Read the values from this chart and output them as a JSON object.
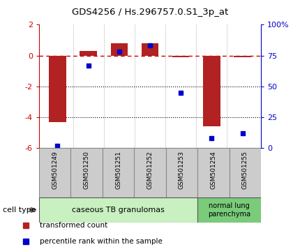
{
  "title": "GDS4256 / Hs.296757.0.S1_3p_at",
  "samples": [
    "GSM501249",
    "GSM501250",
    "GSM501251",
    "GSM501252",
    "GSM501253",
    "GSM501254",
    "GSM501255"
  ],
  "transformed_count": [
    -4.3,
    0.3,
    0.8,
    0.8,
    -0.1,
    -4.6,
    -0.1
  ],
  "percentile_rank": [
    2,
    67,
    78,
    83,
    45,
    8,
    12
  ],
  "left_ylim": [
    -6,
    2
  ],
  "left_yticks": [
    -6,
    -4,
    -2,
    0,
    2
  ],
  "right_ylim": [
    0,
    100
  ],
  "right_yticks": [
    0,
    25,
    50,
    75,
    100
  ],
  "right_yticklabels": [
    "0",
    "25",
    "50",
    "75",
    "100%"
  ],
  "bar_color": "#b22222",
  "dot_color": "#0000cc",
  "zero_line_color": "#cc0000",
  "grid_color": "#000000",
  "cell_types": [
    {
      "label": "caseous TB granulomas",
      "n_samples": 5,
      "color": "#c8f0c0"
    },
    {
      "label": "normal lung\nparenchyma",
      "n_samples": 2,
      "color": "#7acc7a"
    }
  ],
  "legend_items": [
    {
      "color": "#b22222",
      "label": "transformed count"
    },
    {
      "color": "#0000cc",
      "label": "percentile rank within the sample"
    }
  ],
  "cell_type_label": "cell type",
  "bar_width": 0.55,
  "figure_bg": "#ffffff",
  "plot_bg": "#ffffff",
  "label_bg": "#cccccc",
  "label_border": "#888888"
}
